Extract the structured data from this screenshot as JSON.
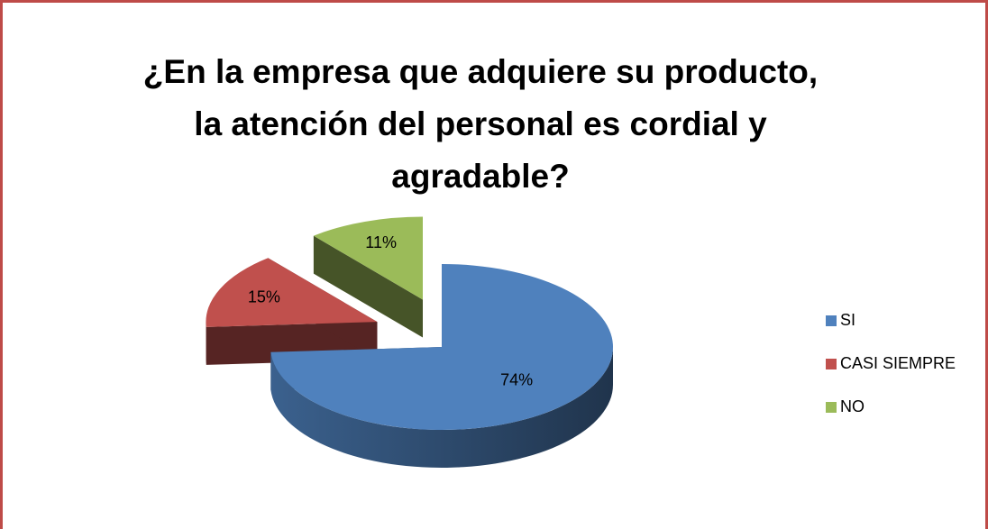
{
  "chart_data": {
    "type": "pie",
    "title": "¿En la empresa que adquiere su producto, la atención del personal es cordial y agradable?",
    "categories": [
      "SI",
      "CASI SIEMPRE",
      "NO"
    ],
    "values": [
      74,
      15,
      11
    ],
    "value_labels": [
      "74%",
      "15%",
      "11%"
    ],
    "colors": [
      "#4f81bd",
      "#c0504d",
      "#9bbb59"
    ],
    "legend": "right"
  }
}
